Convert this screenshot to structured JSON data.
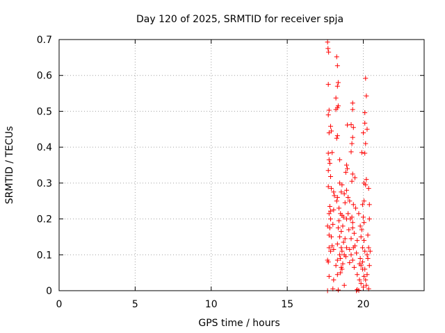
{
  "chart_data": {
    "type": "scatter",
    "title": "Day 120 of 2025, SRMTID for receiver spja",
    "xlabel": "GPS time / hours",
    "ylabel": "SRMTID / TECUs",
    "xlim": [
      0,
      24
    ],
    "ylim": [
      0,
      0.7
    ],
    "xticks": [
      0,
      5,
      10,
      15,
      20
    ],
    "yticks": [
      0,
      0.1,
      0.2,
      0.3,
      0.4,
      0.5,
      0.6,
      0.7
    ],
    "xtick_labels": [
      "0",
      "5",
      "10",
      "15",
      "20"
    ],
    "ytick_labels": [
      "0",
      "0.1",
      "0.2",
      "0.3",
      "0.4",
      "0.5",
      "0.6",
      "0.7"
    ],
    "grid": true,
    "marker": "+",
    "marker_color": "#ff0000",
    "points": [
      [
        17.65,
        0.693
      ],
      [
        17.68,
        0.675
      ],
      [
        17.72,
        0.665
      ],
      [
        18.25,
        0.652
      ],
      [
        18.3,
        0.627
      ],
      [
        18.35,
        0.58
      ],
      [
        18.3,
        0.57
      ],
      [
        17.7,
        0.575
      ],
      [
        20.15,
        0.592
      ],
      [
        20.2,
        0.543
      ],
      [
        18.2,
        0.537
      ],
      [
        18.3,
        0.51
      ],
      [
        18.2,
        0.505
      ],
      [
        18.35,
        0.515
      ],
      [
        17.75,
        0.503
      ],
      [
        17.7,
        0.49
      ],
      [
        19.3,
        0.523
      ],
      [
        19.3,
        0.505
      ],
      [
        20.1,
        0.496
      ],
      [
        19.2,
        0.463
      ],
      [
        19.35,
        0.455
      ],
      [
        18.95,
        0.462
      ],
      [
        20.1,
        0.467
      ],
      [
        20.25,
        0.45
      ],
      [
        20.0,
        0.44
      ],
      [
        17.85,
        0.458
      ],
      [
        17.9,
        0.445
      ],
      [
        17.75,
        0.44
      ],
      [
        18.3,
        0.432
      ],
      [
        18.25,
        0.425
      ],
      [
        19.3,
        0.427
      ],
      [
        19.25,
        0.41
      ],
      [
        20.15,
        0.41
      ],
      [
        20.1,
        0.383
      ],
      [
        19.9,
        0.385
      ],
      [
        19.2,
        0.387
      ],
      [
        17.7,
        0.383
      ],
      [
        17.95,
        0.385
      ],
      [
        17.75,
        0.365
      ],
      [
        18.45,
        0.365
      ],
      [
        17.8,
        0.355
      ],
      [
        18.9,
        0.35
      ],
      [
        18.95,
        0.34
      ],
      [
        18.85,
        0.33
      ],
      [
        17.7,
        0.335
      ],
      [
        17.85,
        0.318
      ],
      [
        19.3,
        0.325
      ],
      [
        19.45,
        0.315
      ],
      [
        19.25,
        0.305
      ],
      [
        20.2,
        0.31
      ],
      [
        20.15,
        0.295
      ],
      [
        20.05,
        0.3
      ],
      [
        18.45,
        0.3
      ],
      [
        18.6,
        0.295
      ],
      [
        18.9,
        0.28
      ],
      [
        18.55,
        0.275
      ],
      [
        18.75,
        0.27
      ],
      [
        17.7,
        0.29
      ],
      [
        17.9,
        0.285
      ],
      [
        18.05,
        0.275
      ],
      [
        18.1,
        0.265
      ],
      [
        18.3,
        0.26
      ],
      [
        18.25,
        0.25
      ],
      [
        19.0,
        0.26
      ],
      [
        19.1,
        0.25
      ],
      [
        18.8,
        0.245
      ],
      [
        20.35,
        0.285
      ],
      [
        20.05,
        0.25
      ],
      [
        19.95,
        0.24
      ],
      [
        20.4,
        0.24
      ],
      [
        19.35,
        0.24
      ],
      [
        19.5,
        0.23
      ],
      [
        17.8,
        0.235
      ],
      [
        17.85,
        0.222
      ],
      [
        17.75,
        0.215
      ],
      [
        18.05,
        0.225
      ],
      [
        18.4,
        0.23
      ],
      [
        18.5,
        0.215
      ],
      [
        18.6,
        0.21
      ],
      [
        19.0,
        0.215
      ],
      [
        19.15,
        0.2
      ],
      [
        19.25,
        0.205
      ],
      [
        19.3,
        0.19
      ],
      [
        18.9,
        0.2
      ],
      [
        18.7,
        0.205
      ],
      [
        18.4,
        0.195
      ],
      [
        17.85,
        0.2
      ],
      [
        20.0,
        0.205
      ],
      [
        20.05,
        0.19
      ],
      [
        20.4,
        0.2
      ],
      [
        19.8,
        0.18
      ],
      [
        19.9,
        0.17
      ],
      [
        17.65,
        0.18
      ],
      [
        17.8,
        0.175
      ],
      [
        18.0,
        0.185
      ],
      [
        18.35,
        0.175
      ],
      [
        18.55,
        0.165
      ],
      [
        18.65,
        0.18
      ],
      [
        19.05,
        0.17
      ],
      [
        19.3,
        0.175
      ],
      [
        19.4,
        0.16
      ],
      [
        18.45,
        0.15
      ],
      [
        18.8,
        0.145
      ],
      [
        17.75,
        0.155
      ],
      [
        17.9,
        0.15
      ],
      [
        19.85,
        0.15
      ],
      [
        20.3,
        0.155
      ],
      [
        20.05,
        0.14
      ],
      [
        19.6,
        0.14
      ],
      [
        19.2,
        0.145
      ],
      [
        18.7,
        0.135
      ],
      [
        18.3,
        0.13
      ],
      [
        17.95,
        0.125
      ],
      [
        17.75,
        0.12
      ],
      [
        17.85,
        0.11
      ],
      [
        18.05,
        0.115
      ],
      [
        18.55,
        0.12
      ],
      [
        18.6,
        0.11
      ],
      [
        18.9,
        0.12
      ],
      [
        19.1,
        0.115
      ],
      [
        19.35,
        0.12
      ],
      [
        19.95,
        0.12
      ],
      [
        20.1,
        0.11
      ],
      [
        20.35,
        0.12
      ],
      [
        19.55,
        0.105
      ],
      [
        18.45,
        0.1
      ],
      [
        18.75,
        0.1
      ],
      [
        19.2,
        0.1
      ],
      [
        20.25,
        0.1
      ],
      [
        20.3,
        0.09
      ],
      [
        19.8,
        0.09
      ],
      [
        18.85,
        0.095
      ],
      [
        18.5,
        0.09
      ],
      [
        17.65,
        0.085
      ],
      [
        17.7,
        0.08
      ],
      [
        18.3,
        0.085
      ],
      [
        19.3,
        0.085
      ],
      [
        19.95,
        0.08
      ],
      [
        18.65,
        0.075
      ],
      [
        19.1,
        0.078
      ],
      [
        19.75,
        0.075
      ],
      [
        19.85,
        0.07
      ],
      [
        20.4,
        0.07
      ],
      [
        18.2,
        0.07
      ],
      [
        18.55,
        0.065
      ],
      [
        18.6,
        0.06
      ],
      [
        19.4,
        0.065
      ],
      [
        19.95,
        0.06
      ],
      [
        17.75,
        0.04
      ],
      [
        18.3,
        0.045
      ],
      [
        18.5,
        0.05
      ],
      [
        19.6,
        0.045
      ],
      [
        20.05,
        0.04
      ],
      [
        20.15,
        0.03
      ],
      [
        20.25,
        0.045
      ],
      [
        18.05,
        0.03
      ],
      [
        18.75,
        0.015
      ],
      [
        19.75,
        0.03
      ],
      [
        19.85,
        0.02
      ],
      [
        20.2,
        0.015
      ],
      [
        17.65,
        0.0
      ],
      [
        18.0,
        0.005
      ],
      [
        18.35,
        0.002
      ],
      [
        19.55,
        0.0
      ],
      [
        19.6,
        0.003
      ],
      [
        19.7,
        0.001
      ],
      [
        20.35,
        0.005
      ],
      [
        20.0,
        0.01
      ],
      [
        19.45,
        0.125
      ],
      [
        20.1,
        0.06
      ],
      [
        19.7,
        0.215
      ],
      [
        20.45,
        0.11
      ]
    ]
  }
}
